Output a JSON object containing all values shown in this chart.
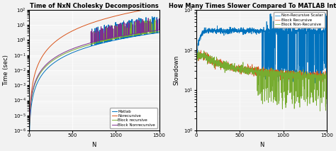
{
  "title_left": "Time of NxN Cholesky Decompositions",
  "title_right": "How Many Times Slower Compared To MATLAB Intrinsic",
  "xlabel": "N",
  "ylabel_left": "Time (sec)",
  "ylabel_right": "Slowdown",
  "xlim": [
    0,
    1500
  ],
  "ylim_left": [
    1e-06,
    100.0
  ],
  "ylim_right": [
    1,
    1000.0
  ],
  "legend_left": [
    "Matlab",
    "Norecursive",
    "Block recursive",
    "Block Nonrecursive"
  ],
  "legend_right": [
    "Non-Recursive Scalar",
    "Block Recursive",
    "Block Non-Recursive"
  ],
  "colors_left": [
    "#0072BD",
    "#D95319",
    "#77AC30",
    "#7E2F8E"
  ],
  "colors_right": [
    "#0072BD",
    "#D95319",
    "#77AC30"
  ],
  "bg_color": "#F2F2F2",
  "grid_color": "#FFFFFF",
  "N_max": 1500
}
